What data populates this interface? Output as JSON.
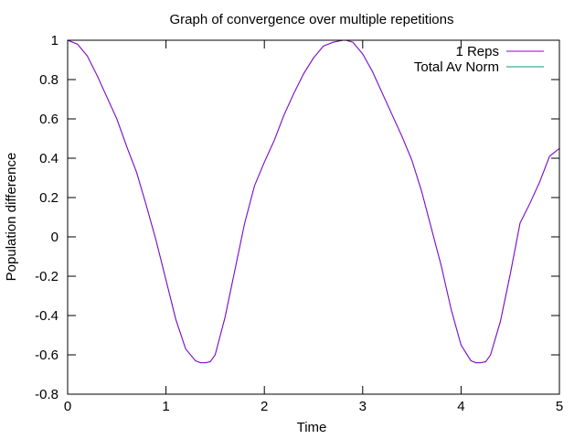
{
  "chart_data": {
    "type": "line",
    "title": "Graph of convergence over multiple repetitions",
    "xlabel": "Time",
    "ylabel": "Population difference",
    "xlim": [
      0,
      5
    ],
    "ylim": [
      -0.8,
      1
    ],
    "x_ticks": [
      "0",
      "1",
      "2",
      "3",
      "4",
      "5"
    ],
    "y_ticks": [
      "-0.8",
      "-0.6",
      "-0.4",
      "-0.2",
      "0",
      "0.2",
      "0.4",
      "0.6",
      "0.8",
      "1"
    ],
    "grid": false,
    "legend_position": "top-right",
    "series": [
      {
        "name": "1 Reps",
        "color": "#9400d3",
        "x": [
          0,
          0.1,
          0.2,
          0.3,
          0.4,
          0.5,
          0.6,
          0.7,
          0.8,
          0.9,
          1.0,
          1.1,
          1.2,
          1.3,
          1.35,
          1.4,
          1.45,
          1.5,
          1.6,
          1.7,
          1.8,
          1.9,
          2.0,
          2.1,
          2.2,
          2.3,
          2.4,
          2.5,
          2.6,
          2.7,
          2.8,
          2.83,
          2.9,
          3.0,
          3.1,
          3.2,
          3.3,
          3.4,
          3.5,
          3.6,
          3.7,
          3.8,
          3.9,
          4.0,
          4.1,
          4.15,
          4.2,
          4.25,
          4.3,
          4.4,
          4.5,
          4.6,
          4.7,
          4.8,
          4.9,
          5.0
        ],
        "y": [
          1.0,
          0.98,
          0.92,
          0.82,
          0.71,
          0.6,
          0.46,
          0.33,
          0.16,
          -0.02,
          -0.22,
          -0.42,
          -0.57,
          -0.63,
          -0.64,
          -0.64,
          -0.635,
          -0.6,
          -0.41,
          -0.17,
          0.07,
          0.26,
          0.38,
          0.49,
          0.62,
          0.73,
          0.83,
          0.91,
          0.97,
          0.99,
          1.0,
          1.0,
          0.99,
          0.93,
          0.84,
          0.73,
          0.62,
          0.51,
          0.39,
          0.23,
          0.04,
          -0.15,
          -0.37,
          -0.55,
          -0.63,
          -0.64,
          -0.64,
          -0.635,
          -0.6,
          -0.43,
          -0.19,
          0.07,
          0.17,
          0.28,
          0.41,
          0.45
        ]
      },
      {
        "name": "Total Av Norm",
        "color": "#009e73",
        "x": [
          0,
          0.1,
          0.2,
          0.3,
          0.4,
          0.5,
          0.6,
          0.7,
          0.8,
          0.9,
          1.0,
          1.1,
          1.2,
          1.3,
          1.35,
          1.4,
          1.45,
          1.5,
          1.6,
          1.7,
          1.8,
          1.9,
          2.0,
          2.1,
          2.2,
          2.3,
          2.4,
          2.5,
          2.6,
          2.7,
          2.8,
          2.83,
          2.9,
          3.0,
          3.1,
          3.2,
          3.3,
          3.4,
          3.5,
          3.6,
          3.7,
          3.8,
          3.9,
          4.0,
          4.1,
          4.15,
          4.2,
          4.25,
          4.3,
          4.4,
          4.5,
          4.6,
          4.7,
          4.8,
          4.9,
          5.0
        ],
        "y": [
          1.0,
          0.98,
          0.92,
          0.82,
          0.71,
          0.6,
          0.46,
          0.33,
          0.16,
          -0.02,
          -0.22,
          -0.42,
          -0.57,
          -0.63,
          -0.64,
          -0.64,
          -0.635,
          -0.6,
          -0.41,
          -0.17,
          0.07,
          0.26,
          0.38,
          0.49,
          0.62,
          0.73,
          0.83,
          0.91,
          0.97,
          0.99,
          1.0,
          1.0,
          0.99,
          0.93,
          0.84,
          0.73,
          0.62,
          0.51,
          0.39,
          0.23,
          0.04,
          -0.15,
          -0.37,
          -0.55,
          -0.63,
          -0.64,
          -0.64,
          -0.635,
          -0.6,
          -0.43,
          -0.19,
          0.07,
          0.17,
          0.28,
          0.41,
          0.45
        ]
      }
    ]
  }
}
